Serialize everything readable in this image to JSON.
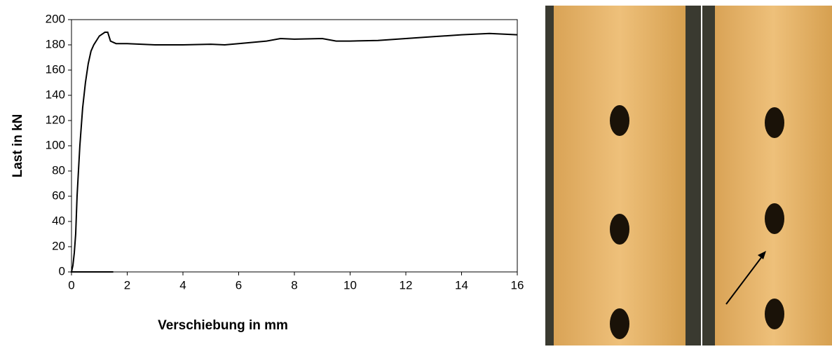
{
  "chart_data": {
    "type": "line",
    "xlabel": "Verschiebung in mm",
    "ylabel": "Last in kN",
    "x": [
      1.5,
      0,
      0.05,
      0.1,
      0.15,
      0.2,
      0.3,
      0.4,
      0.5,
      0.6,
      0.7,
      0.8,
      1.0,
      1.2,
      1.3,
      1.4,
      1.6,
      2,
      3,
      4,
      5,
      5.5,
      6,
      7,
      7.5,
      8,
      9,
      9.5,
      10,
      11,
      12,
      13,
      14,
      15,
      16
    ],
    "series": [
      {
        "color": "#000000",
        "values": [
          0,
          0,
          5,
          15,
          30,
          60,
          100,
          130,
          150,
          165,
          175,
          180,
          187,
          190,
          190,
          183,
          181,
          181,
          180,
          180,
          180.5,
          180,
          181,
          183,
          185,
          184.5,
          185,
          183,
          183,
          183.5,
          185,
          186.5,
          188,
          189,
          188
        ]
      }
    ],
    "xlim": [
      0,
      16
    ],
    "xticks": [
      0,
      2,
      4,
      6,
      8,
      10,
      12,
      14,
      16
    ],
    "ylim": [
      0,
      200
    ],
    "yticks": [
      0,
      20,
      40,
      60,
      80,
      100,
      120,
      140,
      160,
      180,
      200
    ]
  }
}
